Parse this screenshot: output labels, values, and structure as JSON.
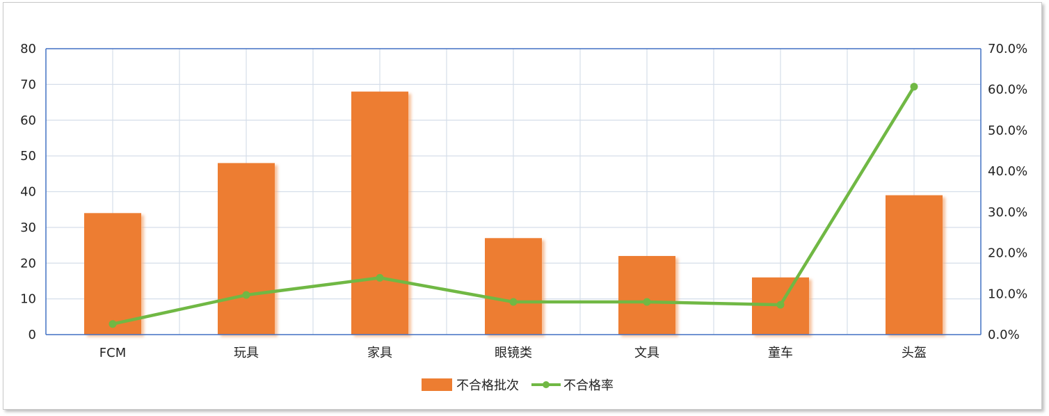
{
  "chart_data": {
    "type": "bar",
    "categories": [
      "FCM",
      "玩具",
      "家具",
      "眼镜类",
      "文具",
      "童车",
      "头盔"
    ],
    "series": [
      {
        "name": "不合格批次",
        "type": "bar",
        "axis": "left",
        "color": "#ED7D31",
        "values": [
          34,
          48,
          68,
          27,
          22,
          16,
          39
        ]
      },
      {
        "name": "不合格率",
        "type": "line",
        "axis": "right",
        "color": "#70B844",
        "values": [
          2.6,
          9.7,
          13.9,
          8.0,
          8.0,
          7.3,
          60.7
        ]
      }
    ],
    "y_left": {
      "min": 0,
      "max": 80,
      "step": 10,
      "ticks": [
        "0",
        "10",
        "20",
        "30",
        "40",
        "50",
        "60",
        "70",
        "80"
      ]
    },
    "y_right": {
      "min": 0,
      "max": 70,
      "step": 10,
      "ticks": [
        "0.0%",
        "10.0%",
        "20.0%",
        "30.0%",
        "40.0%",
        "50.0%",
        "60.0%",
        "70.0%"
      ]
    },
    "grid": true,
    "legend_position": "bottom"
  }
}
